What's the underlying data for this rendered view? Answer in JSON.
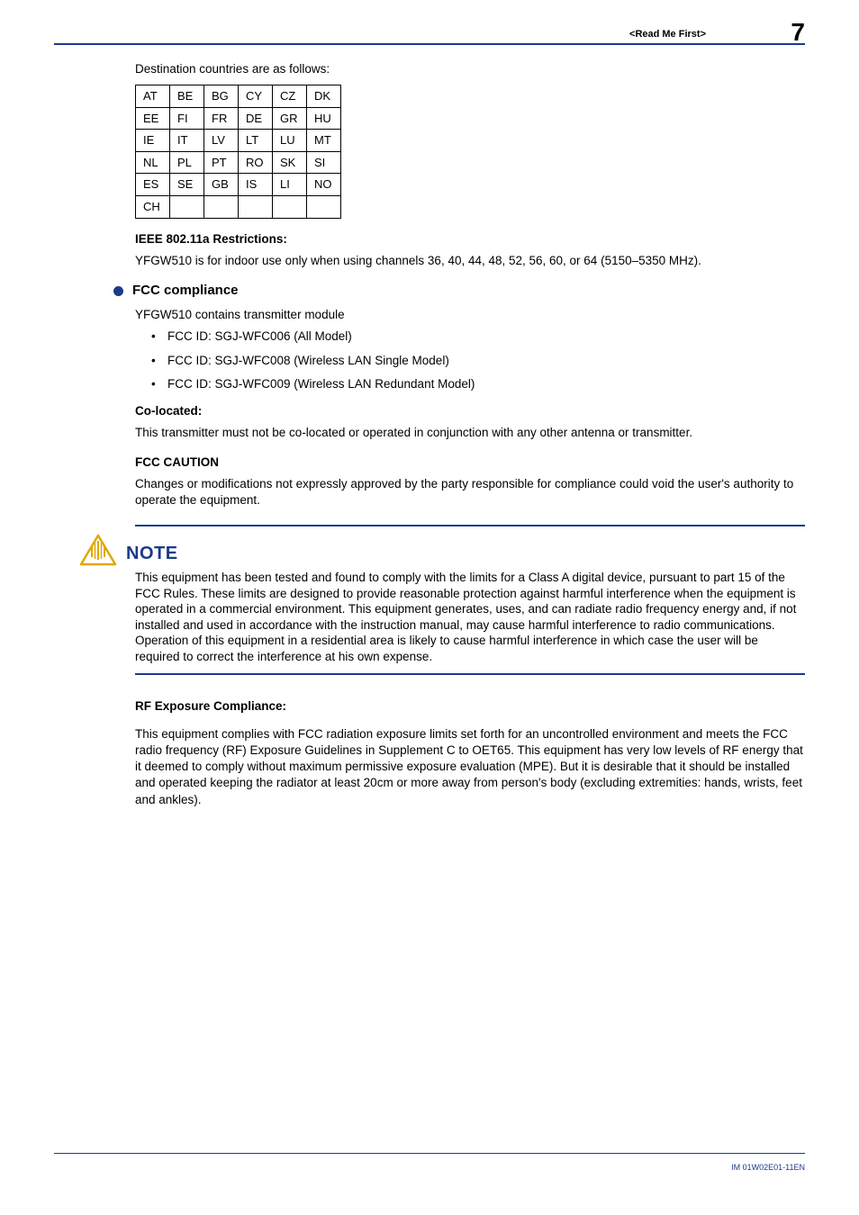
{
  "header": {
    "chapter": "<Read Me First>",
    "page": "7"
  },
  "intro": "Destination countries are as follows:",
  "countries": {
    "rows": [
      [
        "AT",
        "BE",
        "BG",
        "CY",
        "CZ",
        "DK"
      ],
      [
        "EE",
        "FI",
        "FR",
        "DE",
        "GR",
        "HU"
      ],
      [
        "IE",
        "IT",
        "LV",
        "LT",
        "LU",
        "MT"
      ],
      [
        "NL",
        "PL",
        "PT",
        "RO",
        "SK",
        "SI"
      ],
      [
        "ES",
        "SE",
        "GB",
        "IS",
        "LI",
        "NO"
      ],
      [
        "CH",
        "",
        "",
        "",
        "",
        ""
      ]
    ]
  },
  "ieee": {
    "heading": "IEEE 802.11a Restrictions:",
    "body": "YFGW510 is for indoor use only when using channels 36, 40, 44, 48, 52, 56, 60, or 64 (5150–5350 MHz)."
  },
  "fcc": {
    "title": "FCC compliance",
    "intro": "YFGW510 contains transmitter module",
    "items": [
      "FCC ID: SGJ-WFC006 (All Model)",
      "FCC ID: SGJ-WFC008 (Wireless LAN Single Model)",
      "FCC ID: SGJ-WFC009 (Wireless LAN Redundant Model)"
    ],
    "coloc_h": "Co-located:",
    "coloc_b": "This transmitter must not be co-located or operated in conjunction with any other antenna or transmitter.",
    "caution_h": "FCC CAUTION",
    "caution_b": "Changes or modifications not expressly approved by the party responsible for compliance could void the user's authority to operate the equipment."
  },
  "note": {
    "title": "NOTE",
    "body": "This equipment has been tested and found to comply with the limits for a Class A digital device, pursuant to part 15 of the FCC Rules. These limits are designed to provide reasonable protection against harmful interference when the equipment is operated in a commercial environment. This equipment generates, uses, and can radiate radio frequency energy and, if not installed and used in accordance with the instruction manual, may cause harmful interference to radio communications. Operation of this equipment in a residential area is likely to cause harmful interference in which case the user will be required to correct the interference at his own expense."
  },
  "rf": {
    "heading": "RF Exposure Compliance:",
    "body": "This equipment complies with FCC radiation exposure limits set forth for an uncontrolled environment and meets the FCC radio frequency (RF) Exposure Guidelines in Supplement C to OET65. This equipment has very low levels of RF energy that it deemed to comply without maximum permissive exposure evaluation (MPE). But it is desirable that it should be installed and operated keeping the radiator at least 20cm or more away from person's body (excluding extremities: hands, wrists, feet and ankles)."
  },
  "footer": "IM 01W02E01-11EN"
}
